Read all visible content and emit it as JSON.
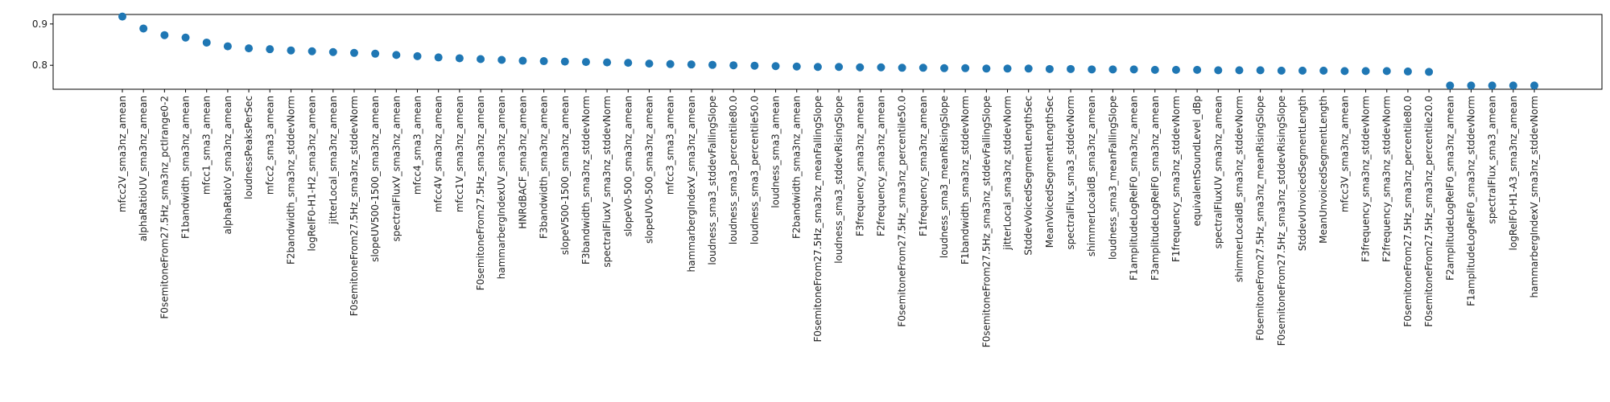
{
  "chart_data": {
    "type": "scatter",
    "title": "",
    "xlabel": "",
    "ylabel": "",
    "ylim": [
      0.742,
      0.923
    ],
    "yticks": [
      0.8,
      0.9
    ],
    "ytick_labels": [
      "0.8",
      "0.9"
    ],
    "grid": false,
    "marker_color": "#1f77b4",
    "categories": [
      "mfcc2V_sma3nz_amean",
      "alphaRatioUV_sma3nz_amean",
      "F0semitoneFrom27.5Hz_sma3nz_pctlrange0-2",
      "F1bandwidth_sma3nz_amean",
      "mfcc1_sma3_amean",
      "alphaRatioV_sma3nz_amean",
      "loudnessPeaksPerSec",
      "mfcc2_sma3_amean",
      "F2bandwidth_sma3nz_stddevNorm",
      "logRelF0-H1-H2_sma3nz_amean",
      "jitterLocal_sma3nz_amean",
      "F0semitoneFrom27.5Hz_sma3nz_stddevNorm",
      "slopeUV500-1500_sma3nz_amean",
      "spectralFluxV_sma3nz_amean",
      "mfcc4_sma3_amean",
      "mfcc4V_sma3nz_amean",
      "mfcc1V_sma3nz_amean",
      "F0semitoneFrom27.5Hz_sma3nz_amean",
      "hammarbergIndexUV_sma3nz_amean",
      "HNRdBACF_sma3nz_amean",
      "F3bandwidth_sma3nz_amean",
      "slopeV500-1500_sma3nz_amean",
      "F3bandwidth_sma3nz_stddevNorm",
      "spectralFluxV_sma3nz_stddevNorm",
      "slopeV0-500_sma3nz_amean",
      "slopeUV0-500_sma3nz_amean",
      "mfcc3_sma3_amean",
      "hammarbergIndexV_sma3nz_amean",
      "loudness_sma3_stddevFallingSlope",
      "loudness_sma3_percentile80.0",
      "loudness_sma3_percentile50.0",
      "loudness_sma3_amean",
      "F2bandwidth_sma3nz_amean",
      "F0semitoneFrom27.5Hz_sma3nz_meanFallingSlope",
      "loudness_sma3_stddevRisingSlope",
      "F3frequency_sma3nz_amean",
      "F2frequency_sma3nz_amean",
      "F0semitoneFrom27.5Hz_sma3nz_percentile50.0",
      "F1frequency_sma3nz_amean",
      "loudness_sma3_meanRisingSlope",
      "F1bandwidth_sma3nz_stddevNorm",
      "F0semitoneFrom27.5Hz_sma3nz_stddevFallingSlope",
      "jitterLocal_sma3nz_stddevNorm",
      "StddevVoicedSegmentLengthSec",
      "MeanVoicedSegmentLengthSec",
      "spectralFlux_sma3_stddevNorm",
      "shimmerLocaldB_sma3nz_amean",
      "loudness_sma3_meanFallingSlope",
      "F1amplitudeLogRelF0_sma3nz_amean",
      "F3amplitudeLogRelF0_sma3nz_amean",
      "F1frequency_sma3nz_stddevNorm",
      "equivalentSoundLevel_dBp",
      "spectralFluxUV_sma3nz_amean",
      "shimmerLocaldB_sma3nz_stddevNorm",
      "F0semitoneFrom27.5Hz_sma3nz_meanRisingSlope",
      "F0semitoneFrom27.5Hz_sma3nz_stddevRisingSlope",
      "StddevUnvoicedSegmentLength",
      "MeanUnvoicedSegmentLength",
      "mfcc3V_sma3nz_amean",
      "F3frequency_sma3nz_stddevNorm",
      "F2frequency_sma3nz_stddevNorm",
      "F0semitoneFrom27.5Hz_sma3nz_percentile80.0",
      "F0semitoneFrom27.5Hz_sma3nz_percentile20.0",
      "F2amplitudeLogRelF0_sma3nz_amean",
      "F1amplitudeLogRelF0_sma3nz_stddevNorm",
      "spectralFlux_sma3_amean",
      "logRelF0-H1-A3_sma3nz_amean",
      "hammarbergIndexV_sma3nz_stddevNorm"
    ],
    "values": [
      0.918,
      0.889,
      0.873,
      0.867,
      0.855,
      0.846,
      0.841,
      0.839,
      0.836,
      0.834,
      0.832,
      0.83,
      0.828,
      0.825,
      0.822,
      0.819,
      0.817,
      0.815,
      0.813,
      0.811,
      0.81,
      0.809,
      0.808,
      0.807,
      0.806,
      0.804,
      0.803,
      0.802,
      0.801,
      0.8,
      0.799,
      0.798,
      0.797,
      0.796,
      0.796,
      0.795,
      0.795,
      0.794,
      0.794,
      0.793,
      0.793,
      0.792,
      0.792,
      0.792,
      0.791,
      0.791,
      0.79,
      0.79,
      0.79,
      0.789,
      0.789,
      0.789,
      0.788,
      0.788,
      0.788,
      0.787,
      0.787,
      0.787,
      0.786,
      0.786,
      0.786,
      0.785,
      0.784,
      0.751,
      0.751,
      0.751,
      0.751,
      0.751
    ]
  }
}
